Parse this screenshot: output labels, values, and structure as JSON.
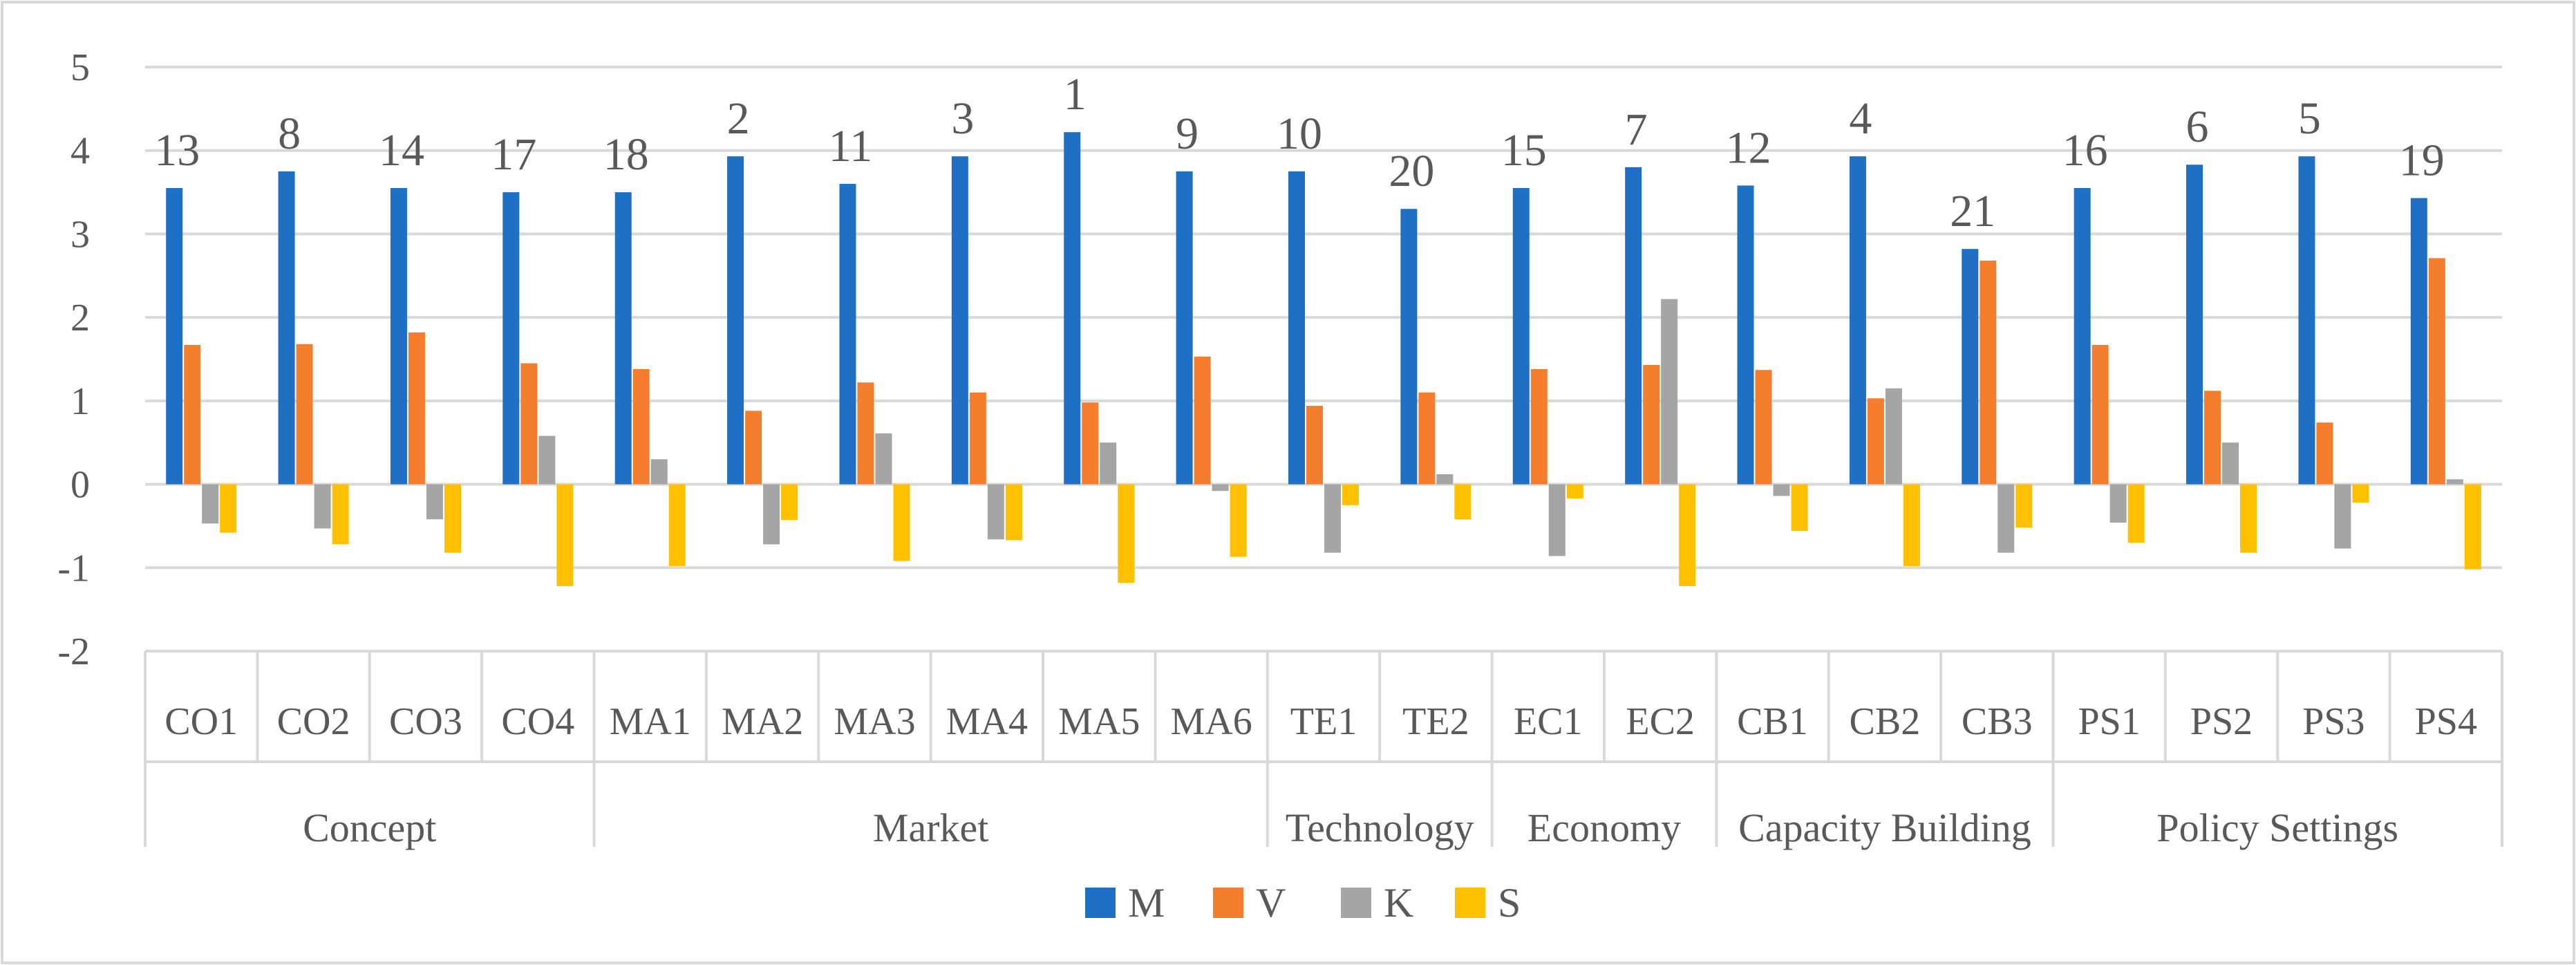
{
  "chart_data": {
    "type": "bar",
    "title": "",
    "xlabel": "",
    "ylabel": "",
    "ylim": [
      -2,
      5
    ],
    "yticks": [
      "5",
      "4",
      "3",
      "2",
      "1",
      "0",
      "-1",
      "-2"
    ],
    "grid": true,
    "legend_position": "bottom",
    "groups": [
      {
        "name": "Concept",
        "categories": [
          "CO1",
          "CO2",
          "CO3",
          "CO4"
        ]
      },
      {
        "name": "Market",
        "categories": [
          "MA1",
          "MA2",
          "MA3",
          "MA4",
          "MA5",
          "MA6"
        ]
      },
      {
        "name": "Technology",
        "categories": [
          "TE1",
          "TE2"
        ]
      },
      {
        "name": "Economy",
        "categories": [
          "EC1",
          "EC2"
        ]
      },
      {
        "name": "Capacity Building",
        "categories": [
          "CB1",
          "CB2",
          "CB3"
        ]
      },
      {
        "name": "Policy Settings",
        "categories": [
          "PS1",
          "PS2",
          "PS3",
          "PS4"
        ]
      }
    ],
    "categories": [
      "CO1",
      "CO2",
      "CO3",
      "CO4",
      "MA1",
      "MA2",
      "MA3",
      "MA4",
      "MA5",
      "MA6",
      "TE1",
      "TE2",
      "EC1",
      "EC2",
      "CB1",
      "CB2",
      "CB3",
      "PS1",
      "PS2",
      "PS3",
      "PS4"
    ],
    "ranks": [
      "13",
      "8",
      "14",
      "17",
      "18",
      "2",
      "11",
      "3",
      "1",
      "9",
      "10",
      "20",
      "15",
      "7",
      "12",
      "4",
      "21",
      "16",
      "6",
      "5",
      "19"
    ],
    "series": [
      {
        "name": "M",
        "color": "#1F6FC5",
        "values": [
          3.55,
          3.75,
          3.55,
          3.5,
          3.5,
          3.93,
          3.6,
          3.93,
          4.22,
          3.75,
          3.75,
          3.3,
          3.55,
          3.8,
          3.58,
          3.93,
          2.82,
          3.55,
          3.83,
          3.93,
          3.43
        ]
      },
      {
        "name": "V",
        "color": "#F47E2E",
        "values": [
          1.67,
          1.68,
          1.82,
          1.45,
          1.38,
          0.88,
          1.22,
          1.1,
          0.98,
          1.53,
          0.94,
          1.1,
          1.38,
          1.43,
          1.37,
          1.03,
          2.68,
          1.67,
          1.12,
          0.74,
          2.71
        ]
      },
      {
        "name": "K",
        "color": "#A5A5A5",
        "values": [
          -0.47,
          -0.53,
          -0.42,
          0.58,
          0.3,
          -0.72,
          0.61,
          -0.66,
          0.5,
          -0.08,
          -0.82,
          0.12,
          -0.86,
          2.22,
          -0.14,
          1.15,
          -0.82,
          -0.46,
          0.5,
          -0.77,
          0.06
        ]
      },
      {
        "name": "S",
        "color": "#FFC000",
        "values": [
          -0.58,
          -0.72,
          -0.82,
          -1.22,
          -0.98,
          -0.43,
          -0.92,
          -0.67,
          -1.18,
          -0.87,
          -0.25,
          -0.42,
          -0.17,
          -1.22,
          -0.56,
          -0.98,
          -0.52,
          -0.7,
          -0.82,
          -0.22,
          -1.02
        ]
      }
    ]
  }
}
